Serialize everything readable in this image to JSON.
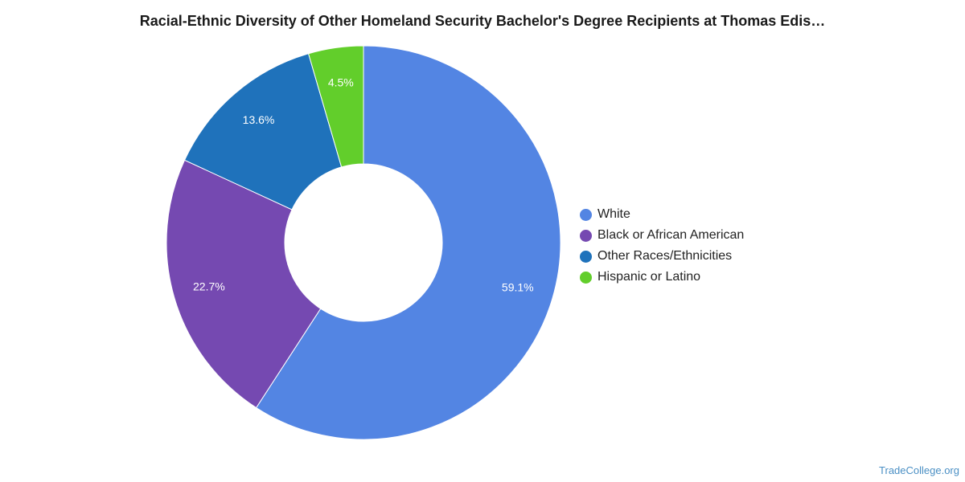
{
  "chart_data": {
    "type": "pie",
    "variant": "donut",
    "title": "Racial-Ethnic Diversity of Other Homeland Security Bachelor's Degree Recipients at Thomas Edis…",
    "slices": [
      {
        "label": "White",
        "value": 59.1,
        "display": "59.1%",
        "color": "#5385e3"
      },
      {
        "label": "Black or African American",
        "value": 22.7,
        "display": "22.7%",
        "color": "#7549b1"
      },
      {
        "label": "Other Races/Ethnicities",
        "value": 13.6,
        "display": "13.6%",
        "color": "#1f72bb"
      },
      {
        "label": "Hispanic or Latino",
        "value": 4.5,
        "display": "4.5%",
        "color": "#62ce2b"
      }
    ],
    "legend_position": "right"
  },
  "watermark": "TradeCollege.org"
}
